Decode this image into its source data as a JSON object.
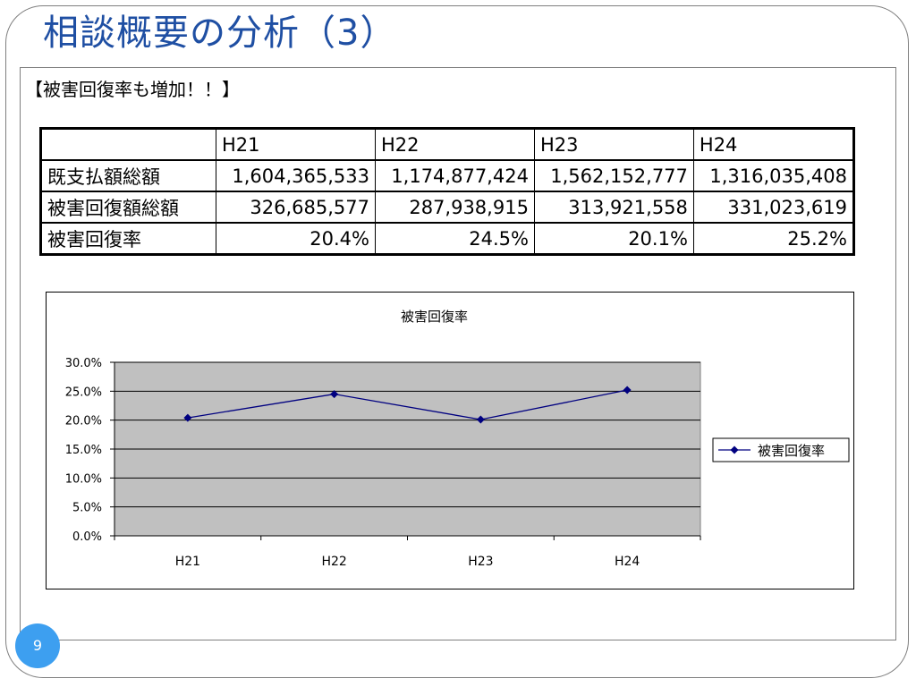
{
  "slide": {
    "title": "相談概要の分析（3）",
    "subtitle": "【被害回復率も増加！！】",
    "page_number": "9"
  },
  "table": {
    "headers": [
      "",
      "H21",
      "H22",
      "H23",
      "H24"
    ],
    "rows": [
      {
        "label": "既支払額総額",
        "values": [
          "1,604,365,533",
          "1,174,877,424",
          "1,562,152,777",
          "1,316,035,408"
        ]
      },
      {
        "label": "被害回復額総額",
        "values": [
          "326,685,577",
          "287,938,915",
          "313,921,558",
          "331,023,619"
        ]
      },
      {
        "label": "被害回復率",
        "values": [
          "20.4%",
          "24.5%",
          "20.1%",
          "25.2%"
        ]
      }
    ]
  },
  "chart_data": {
    "type": "line",
    "title": "被害回復率",
    "categories": [
      "H21",
      "H22",
      "H23",
      "H24"
    ],
    "series": [
      {
        "name": "被害回復率",
        "values": [
          20.4,
          24.5,
          20.1,
          25.2
        ],
        "color": "#000080"
      }
    ],
    "y_tick_labels": [
      "0.0%",
      "5.0%",
      "10.0%",
      "15.0%",
      "20.0%",
      "25.0%",
      "30.0%"
    ],
    "ylim": [
      0,
      30
    ],
    "y_step": 5,
    "plot_background": "#c0c0c0",
    "grid": true,
    "legend_position": "right"
  }
}
